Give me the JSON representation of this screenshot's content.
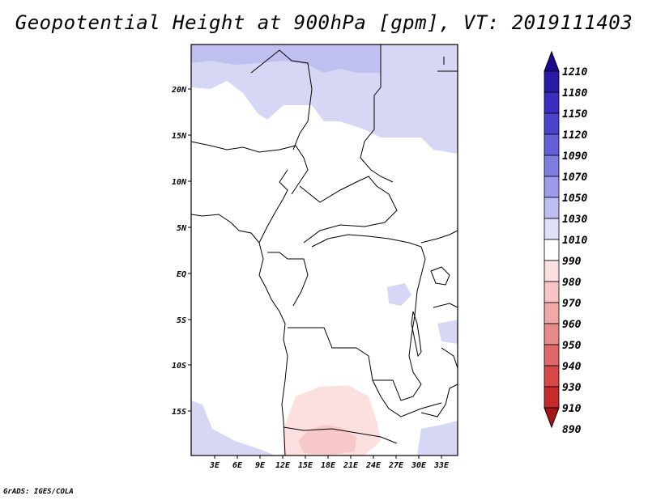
{
  "title": "Geopotential Height at 900hPa [gpm], VT: 2019111403",
  "credit": "GrADS: IGES/COLA",
  "map": {
    "lon_labels": [
      "3E",
      "6E",
      "9E",
      "12E",
      "15E",
      "18E",
      "21E",
      "24E",
      "27E",
      "30E",
      "33E"
    ],
    "lat_labels": [
      "20N",
      "15N",
      "10N",
      "5N",
      "EQ",
      "5S",
      "10S",
      "15S"
    ],
    "colors": {
      "light_blue": "#d6d6f5",
      "mid_blue": "#c0c0f0",
      "pink": "#fce0e0",
      "darker_pink": "#f8c8c8",
      "border": "#000000"
    }
  },
  "colorbar": {
    "levels": [
      "1210",
      "1180",
      "1150",
      "1120",
      "1090",
      "1070",
      "1050",
      "1030",
      "1010",
      "990",
      "980",
      "970",
      "960",
      "950",
      "940",
      "930",
      "910",
      "890"
    ],
    "colors": [
      "#1c0c8c",
      "#2a1aa8",
      "#3a2ec0",
      "#4b44cc",
      "#6560d8",
      "#7f7ee2",
      "#9c9cea",
      "#bebef2",
      "#e0e0f8",
      "#ffffff",
      "#fce0e0",
      "#f8c4c4",
      "#f0a8a8",
      "#e88a8a",
      "#e06868",
      "#d84848",
      "#c82a2a",
      "#a81414"
    ]
  }
}
